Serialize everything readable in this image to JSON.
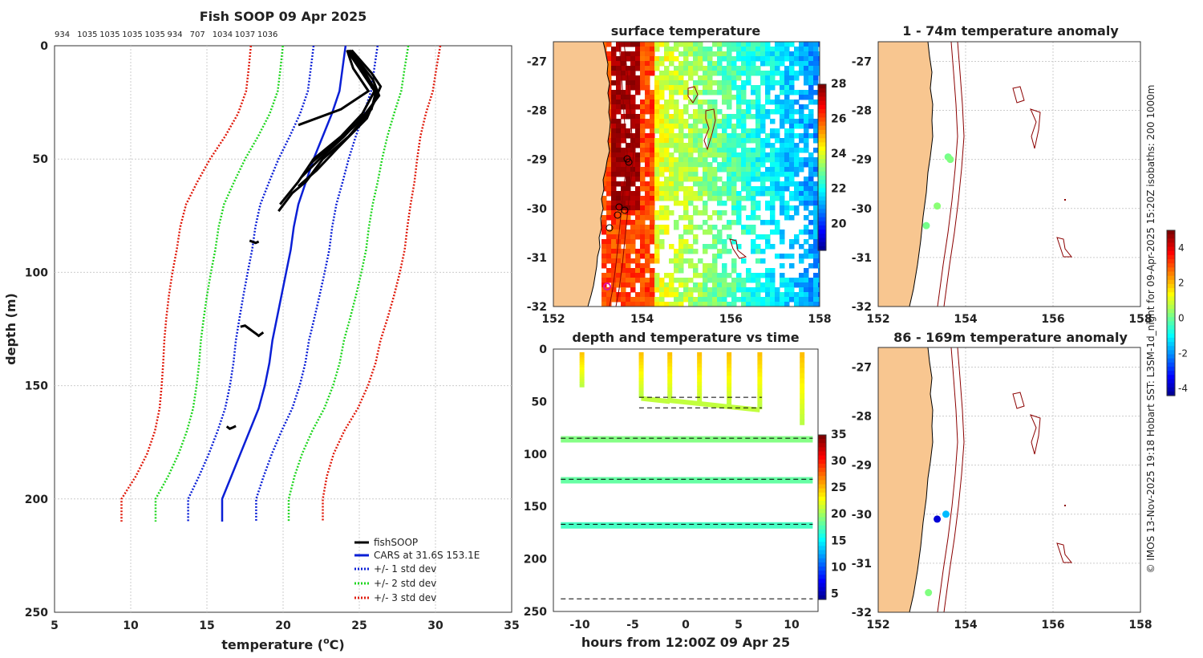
{
  "credit": "© IMOS 13-Nov-2025 19:18 Hobart SST: L3SM-1d_night for 09-Apr-2025 15:20Z isobaths: 200  1000m",
  "chart_data": [
    {
      "id": "profile",
      "type": "line",
      "title": "Fish SOOP 09 Apr 2025",
      "top_labels": [
        "934",
        "1035",
        "1035",
        "1035",
        "1035",
        "934",
        "707",
        "1034",
        "1037",
        "1036"
      ],
      "xlabel": "temperature (",
      "xlabel_sup": "o",
      "xlabel_end": "C)",
      "ylabel": "depth (m)",
      "xlim": [
        5,
        35
      ],
      "ylim": [
        0,
        250
      ],
      "xticks": [
        "5",
        "10",
        "15",
        "20",
        "25",
        "30",
        "35"
      ],
      "yticks": [
        "0",
        "50",
        "100",
        "150",
        "200",
        "250"
      ],
      "legend": [
        "fishSOOP",
        "CARS at 31.6S 153.1E",
        "+/- 1 std dev",
        "+/- 2 std dev",
        "+/- 3 std dev"
      ],
      "colors": {
        "fish": "#000000",
        "cars": "#0a1fd6",
        "sd1": "#0a1fd6",
        "sd2": "#1fd61f",
        "sd3": "#e01b0c"
      },
      "cars": {
        "depth": [
          0,
          5,
          10,
          20,
          30,
          40,
          50,
          60,
          70,
          80,
          90,
          100,
          110,
          120,
          130,
          140,
          150,
          160,
          170,
          180,
          190,
          200,
          210
        ],
        "temp": [
          24.1,
          24.0,
          23.9,
          23.7,
          23.2,
          22.6,
          22.0,
          21.5,
          21.0,
          20.7,
          20.5,
          20.2,
          19.9,
          19.6,
          19.3,
          19.1,
          18.8,
          18.4,
          17.8,
          17.2,
          16.6,
          16.0,
          16.0
        ]
      },
      "std_offsets": [
        2.3,
        4.5,
        6.8
      ],
      "fish_casts": [
        {
          "depth": [
            2,
            10,
            20,
            28,
            35
          ],
          "temp": [
            24.2,
            24.6,
            25.6,
            23.8,
            21.0
          ]
        },
        {
          "depth": [
            2,
            15,
            22,
            30,
            40,
            50,
            60,
            65,
            73
          ],
          "temp": [
            24.2,
            25.5,
            26.2,
            25.6,
            24.3,
            22.6,
            21.5,
            20.6,
            19.7
          ]
        },
        {
          "depth": [
            2,
            15,
            22,
            30,
            40,
            50,
            58
          ],
          "temp": [
            24.4,
            25.9,
            26.3,
            25.4,
            24.0,
            22.4,
            21.2
          ]
        },
        {
          "depth": [
            2,
            12,
            20,
            30,
            40,
            50,
            60,
            70
          ],
          "temp": [
            24.3,
            25.3,
            26.0,
            25.2,
            23.8,
            22.0,
            21.0,
            19.8
          ]
        },
        {
          "depth": [
            2,
            12,
            18,
            32,
            45,
            55,
            62
          ],
          "temp": [
            24.5,
            25.8,
            26.4,
            25.5,
            23.6,
            22.2,
            21.0
          ]
        },
        {
          "depth": [
            2,
            10,
            20,
            28,
            36,
            44,
            52
          ],
          "temp": [
            24.4,
            25.2,
            26.1,
            25.8,
            24.6,
            23.2,
            21.8
          ]
        }
      ],
      "fish_patches": [
        {
          "depth": [
            86,
            86.5,
            87,
            86.4
          ],
          "temp": [
            17.8,
            18.0,
            18.2,
            18.4
          ]
        },
        {
          "depth": [
            124,
            123.5,
            125,
            126,
            127,
            128,
            126.5
          ],
          "temp": [
            17.2,
            17.5,
            17.8,
            18.0,
            18.2,
            18.4,
            18.7
          ]
        },
        {
          "depth": [
            168,
            169,
            168.5,
            167.8
          ],
          "temp": [
            16.3,
            16.5,
            16.7,
            16.9
          ]
        }
      ]
    },
    {
      "id": "sst",
      "type": "heatmap",
      "title": "surface temperature",
      "xlim": [
        152,
        158
      ],
      "ylim": [
        -32,
        -26.6
      ],
      "xticks": [
        "152",
        "154",
        "156",
        "158"
      ],
      "yticks": [
        "-27",
        "-28",
        "-29",
        "-30",
        "-31",
        "-32"
      ],
      "colorbar_ticks": [
        "20",
        "22",
        "24",
        "26",
        "28"
      ],
      "clim": [
        18.5,
        28
      ]
    },
    {
      "id": "timeseries",
      "type": "scatter",
      "title": "depth and temperature vs time",
      "xlabel": "hours from 12:00Z 09 Apr 25",
      "xlim": [
        -12.5,
        12.5
      ],
      "ylim": [
        0,
        250
      ],
      "xticks": [
        "-10",
        "-5",
        "0",
        "5",
        "10"
      ],
      "yticks": [
        "0",
        "50",
        "100",
        "150",
        "200",
        "250"
      ],
      "colorbar_ticks": [
        "5",
        "10",
        "15",
        "20",
        "25",
        "30",
        "35"
      ],
      "clim": [
        4,
        35
      ],
      "dashed_depths": [
        46,
        56,
        85,
        124,
        167,
        238
      ],
      "bottom_dashed": 238
    },
    {
      "id": "anom1",
      "type": "scatter",
      "title": "1 - 74m temperature anomaly",
      "xlim": [
        152,
        158
      ],
      "ylim": [
        -32,
        -26.6
      ],
      "xticks": [
        "152",
        "154",
        "156",
        "158"
      ],
      "yticks": [
        "-27",
        "-28",
        "-29",
        "-30",
        "-31",
        "-32"
      ],
      "points": [
        {
          "lon": 153.6,
          "lat": -28.95,
          "anom": 0.2
        },
        {
          "lon": 153.65,
          "lat": -29.0,
          "anom": 0.3
        },
        {
          "lon": 153.35,
          "lat": -29.95,
          "anom": 0.4
        },
        {
          "lon": 153.1,
          "lat": -30.35,
          "anom": 0.2
        }
      ]
    },
    {
      "id": "anom2",
      "type": "scatter",
      "title": "86 - 169m temperature anomaly",
      "xlim": [
        152,
        158
      ],
      "ylim": [
        -32,
        -26.6
      ],
      "xticks": [
        "152",
        "154",
        "156",
        "158"
      ],
      "yticks": [
        "-27",
        "-28",
        "-29",
        "-30",
        "-31",
        "-32"
      ],
      "points": [
        {
          "lon": 153.55,
          "lat": -30.0,
          "anom": -1.5
        },
        {
          "lon": 153.35,
          "lat": -30.1,
          "anom": -3.6
        },
        {
          "lon": 153.15,
          "lat": -31.6,
          "anom": 0.3
        }
      ],
      "colorbar_ticks": [
        "-4",
        "-2",
        "0",
        "2",
        "4"
      ],
      "clim": [
        -4.4,
        5
      ]
    }
  ]
}
